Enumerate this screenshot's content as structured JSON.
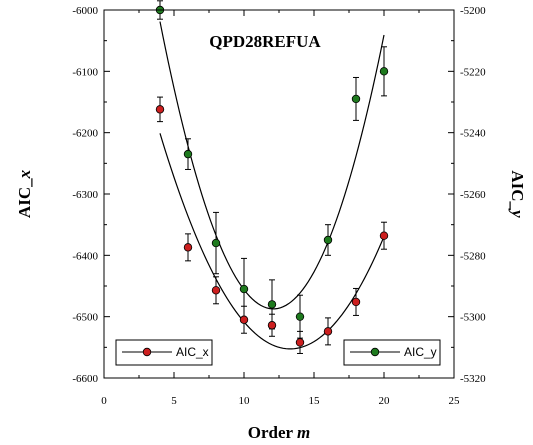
{
  "chart_data": {
    "type": "scatter",
    "title": "QPD28REFUA",
    "xlabel": {
      "main": "Order ",
      "italic": "m"
    },
    "ylabel_left": {
      "main": "AIC_",
      "italic": "x"
    },
    "ylabel_right": {
      "main": "AIC_",
      "italic": "y"
    },
    "xlim": [
      0,
      25
    ],
    "ylim_left": [
      -6600,
      -6000
    ],
    "ylim_right": [
      -5320,
      -5200
    ],
    "x_ticks": [
      "0",
      "5",
      "10",
      "15",
      "20",
      "25"
    ],
    "y_ticks_left": [
      "-6600",
      "-6500",
      "-6400",
      "-6300",
      "-6200",
      "-6100",
      "-6000"
    ],
    "y_ticks_right": [
      "-5320",
      "-5300",
      "-5280",
      "-5260",
      "-5240",
      "-5220",
      "-5200"
    ],
    "grid": false,
    "series": [
      {
        "name": "AIC_x",
        "axis": "left",
        "color": "#cc1f1f",
        "x": [
          4,
          6,
          8,
          10,
          12,
          14,
          16,
          18,
          20
        ],
        "y": [
          -6162,
          -6387,
          -6457,
          -6505,
          -6514,
          -6542,
          -6524,
          -6476,
          -6368
        ],
        "err": [
          20,
          22,
          22,
          22,
          18,
          18,
          22,
          22,
          22
        ],
        "fit": [
          0.0,
          3.0,
          -6330
        ]
      },
      {
        "name": "AIC_y",
        "axis": "right",
        "color": "#1e7a1e",
        "x": [
          4,
          6,
          8,
          10,
          12,
          14,
          16,
          18,
          20
        ],
        "y": [
          -5200,
          -5247,
          -5276,
          -5291,
          -5296,
          -5300,
          -5275,
          -5229,
          -5220
        ],
        "err": [
          3,
          5,
          10,
          10,
          8,
          7,
          5,
          7,
          8
        ],
        "fit": [
          0.0,
          3.0,
          -5253
        ]
      }
    ],
    "legend": [
      {
        "label": "AIC_x",
        "position": "bottom-left"
      },
      {
        "label": "AIC_y",
        "position": "bottom-right"
      }
    ]
  }
}
